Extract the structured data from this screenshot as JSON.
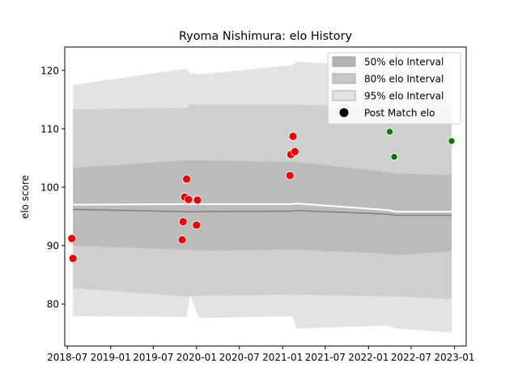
{
  "chart_data": {
    "type": "scatter",
    "title": "Ryoma Nishimura: elo History",
    "xlabel": "",
    "ylabel": "elo score",
    "xlim": [
      "2018-06-20",
      "2023-02-20"
    ],
    "ylim": [
      72.8,
      124.0
    ],
    "x_ticks": [
      "2018-07",
      "2019-01",
      "2019-07",
      "2020-01",
      "2020-07",
      "2021-01",
      "2021-07",
      "2022-01",
      "2022-07",
      "2023-01"
    ],
    "y_ticks": [
      80,
      90,
      100,
      110,
      120
    ],
    "grid": false,
    "legend_position": "top-right",
    "legend": [
      {
        "label": "50% elo Interval",
        "kind": "patch",
        "color": "#b3b3b3"
      },
      {
        "label": "80% elo Interval",
        "kind": "patch",
        "color": "#c8c8c8"
      },
      {
        "label": "95% elo Interval",
        "kind": "patch",
        "color": "#e3e3e3"
      },
      {
        "label": "Post Match elo",
        "kind": "marker",
        "color": "#000000"
      }
    ],
    "colors": {
      "band50": "#bbbbbb",
      "band80": "#cfcfcf",
      "band95": "#e3e3e3",
      "median_line": "#808080",
      "mean_line": "#ffffff",
      "past_points": "#ee0000",
      "future_points": "#007a00"
    },
    "bands": {
      "dates": [
        "2018-07-25",
        "2019-11-20",
        "2019-12-05",
        "2020-01-10",
        "2021-02-10",
        "2021-03-01",
        "2022-03-20",
        "2022-05-01",
        "2022-12-20"
      ],
      "lower95": [
        77.9,
        77.8,
        81.4,
        77.6,
        77.9,
        75.8,
        76.3,
        75.8,
        75.1
      ],
      "upper95": [
        117.5,
        120.3,
        119.5,
        119.3,
        120.9,
        121.5,
        120.5,
        121.0,
        121.0
      ],
      "lower80": [
        82.7,
        81.3,
        81.4,
        81.4,
        81.6,
        81.6,
        81.3,
        81.3,
        80.8
      ],
      "upper80": [
        113.3,
        113.6,
        114.3,
        114.1,
        114.1,
        114.1,
        113.9,
        113.8,
        113.8
      ],
      "lower50": [
        90.0,
        89.3,
        89.3,
        89.1,
        89.3,
        89.3,
        88.6,
        88.4,
        89.0
      ],
      "upper50": [
        103.3,
        104.6,
        104.6,
        104.6,
        104.3,
        104.3,
        102.6,
        102.3,
        102.1
      ],
      "median": [
        96.2,
        95.8,
        95.8,
        95.8,
        95.9,
        96.0,
        95.4,
        95.2,
        95.2
      ],
      "mean": [
        97.0,
        97.1,
        97.1,
        97.1,
        97.1,
        97.2,
        96.1,
        95.8,
        95.8
      ]
    },
    "points_past": [
      {
        "x": "2018-07-20",
        "y": 91.2
      },
      {
        "x": "2018-07-25",
        "y": 87.8
      },
      {
        "x": "2019-11-01",
        "y": 91.0
      },
      {
        "x": "2019-11-05",
        "y": 94.1
      },
      {
        "x": "2019-11-12",
        "y": 98.3
      },
      {
        "x": "2019-11-20",
        "y": 101.4
      },
      {
        "x": "2019-11-28",
        "y": 97.9
      },
      {
        "x": "2020-01-01",
        "y": 93.5
      },
      {
        "x": "2020-01-05",
        "y": 97.8
      },
      {
        "x": "2021-02-01",
        "y": 102.0
      },
      {
        "x": "2021-02-05",
        "y": 105.6
      },
      {
        "x": "2021-02-14",
        "y": 108.7
      },
      {
        "x": "2021-02-22",
        "y": 106.1
      }
    ],
    "points_future": [
      {
        "x": "2022-04-01",
        "y": 109.5
      },
      {
        "x": "2022-04-20",
        "y": 105.2
      },
      {
        "x": "2022-12-20",
        "y": 107.9
      }
    ]
  }
}
